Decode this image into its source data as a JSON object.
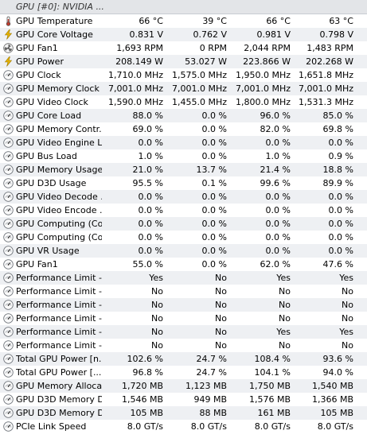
{
  "header": {
    "title": "GPU [#0]: NVIDIA ..."
  },
  "rows": [
    {
      "name": "GPU Temperature",
      "icon": "thermometer-icon",
      "values": [
        "66 °C",
        "39 °C",
        "66 °C",
        "63 °C"
      ]
    },
    {
      "name": "GPU Core Voltage",
      "icon": "lightning-icon",
      "values": [
        "0.831 V",
        "0.762 V",
        "0.981 V",
        "0.798 V"
      ]
    },
    {
      "name": "GPU Fan1",
      "icon": "fan-icon",
      "values": [
        "1,693 RPM",
        "0 RPM",
        "2,044 RPM",
        "1,483 RPM"
      ]
    },
    {
      "name": "GPU Power",
      "icon": "lightning-icon",
      "values": [
        "208.149 W",
        "53.027 W",
        "223.866 W",
        "202.268 W"
      ]
    },
    {
      "name": "GPU Clock",
      "icon": "gauge-icon",
      "values": [
        "1,710.0 MHz",
        "1,575.0 MHz",
        "1,950.0 MHz",
        "1,651.8 MHz"
      ]
    },
    {
      "name": "GPU Memory Clock",
      "icon": "gauge-icon",
      "values": [
        "7,001.0 MHz",
        "7,001.0 MHz",
        "7,001.0 MHz",
        "7,001.0 MHz"
      ]
    },
    {
      "name": "GPU Video Clock",
      "icon": "gauge-icon",
      "values": [
        "1,590.0 MHz",
        "1,455.0 MHz",
        "1,800.0 MHz",
        "1,531.3 MHz"
      ]
    },
    {
      "name": "GPU Core Load",
      "icon": "gauge-icon",
      "values": [
        "88.0 %",
        "0.0 %",
        "96.0 %",
        "85.0 %"
      ]
    },
    {
      "name": "GPU Memory Contr...",
      "icon": "gauge-icon",
      "values": [
        "69.0 %",
        "0.0 %",
        "82.0 %",
        "69.8 %"
      ]
    },
    {
      "name": "GPU Video Engine L...",
      "icon": "gauge-icon",
      "values": [
        "0.0 %",
        "0.0 %",
        "0.0 %",
        "0.0 %"
      ]
    },
    {
      "name": "GPU Bus Load",
      "icon": "gauge-icon",
      "values": [
        "1.0 %",
        "0.0 %",
        "1.0 %",
        "0.9 %"
      ]
    },
    {
      "name": "GPU Memory Usage",
      "icon": "gauge-icon",
      "values": [
        "21.0 %",
        "13.7 %",
        "21.4 %",
        "18.8 %"
      ]
    },
    {
      "name": "GPU D3D Usage",
      "icon": "gauge-icon",
      "values": [
        "95.5 %",
        "0.1 %",
        "99.6 %",
        "89.9 %"
      ]
    },
    {
      "name": "GPU Video Decode ...",
      "icon": "gauge-icon",
      "values": [
        "0.0 %",
        "0.0 %",
        "0.0 %",
        "0.0 %"
      ]
    },
    {
      "name": "GPU Video Encode ...",
      "icon": "gauge-icon",
      "values": [
        "0.0 %",
        "0.0 %",
        "0.0 %",
        "0.0 %"
      ]
    },
    {
      "name": "GPU Computing (Co...",
      "icon": "gauge-icon",
      "values": [
        "0.0 %",
        "0.0 %",
        "0.0 %",
        "0.0 %"
      ]
    },
    {
      "name": "GPU Computing (Co...",
      "icon": "gauge-icon",
      "values": [
        "0.0 %",
        "0.0 %",
        "0.0 %",
        "0.0 %"
      ]
    },
    {
      "name": "GPU VR Usage",
      "icon": "gauge-icon",
      "values": [
        "0.0 %",
        "0.0 %",
        "0.0 %",
        "0.0 %"
      ]
    },
    {
      "name": "GPU Fan1",
      "icon": "gauge-icon",
      "values": [
        "55.0 %",
        "0.0 %",
        "62.0 %",
        "47.6 %"
      ]
    },
    {
      "name": "Performance Limit - ...",
      "icon": "gauge-icon",
      "values": [
        "Yes",
        "No",
        "Yes",
        "Yes"
      ]
    },
    {
      "name": "Performance Limit - ...",
      "icon": "gauge-icon",
      "values": [
        "No",
        "No",
        "No",
        "No"
      ]
    },
    {
      "name": "Performance Limit - ...",
      "icon": "gauge-icon",
      "values": [
        "No",
        "No",
        "No",
        "No"
      ]
    },
    {
      "name": "Performance Limit - ...",
      "icon": "gauge-icon",
      "values": [
        "No",
        "No",
        "No",
        "No"
      ]
    },
    {
      "name": "Performance Limit - ...",
      "icon": "gauge-icon",
      "values": [
        "No",
        "No",
        "Yes",
        "Yes"
      ]
    },
    {
      "name": "Performance Limit - ...",
      "icon": "gauge-icon",
      "values": [
        "No",
        "No",
        "No",
        "No"
      ]
    },
    {
      "name": "Total GPU Power [n...",
      "icon": "gauge-icon",
      "values": [
        "102.6 %",
        "24.7 %",
        "108.4 %",
        "93.6 %"
      ]
    },
    {
      "name": "Total GPU Power [...",
      "icon": "gauge-icon",
      "values": [
        "96.8 %",
        "24.7 %",
        "104.1 %",
        "94.0 %"
      ]
    },
    {
      "name": "GPU Memory Alloca...",
      "icon": "gauge-icon",
      "values": [
        "1,720 MB",
        "1,123 MB",
        "1,750 MB",
        "1,540 MB"
      ]
    },
    {
      "name": "GPU D3D Memory D...",
      "icon": "gauge-icon",
      "values": [
        "1,546 MB",
        "949 MB",
        "1,576 MB",
        "1,366 MB"
      ]
    },
    {
      "name": "GPU D3D Memory D...",
      "icon": "gauge-icon",
      "values": [
        "105 MB",
        "88 MB",
        "161 MB",
        "105 MB"
      ]
    },
    {
      "name": "PCIe Link Speed",
      "icon": "gauge-icon",
      "values": [
        "8.0 GT/s",
        "8.0 GT/s",
        "8.0 GT/s",
        "8.0 GT/s"
      ]
    }
  ],
  "colors": {
    "accent_lightning": "#e6b400",
    "thermometer": "#c0392b",
    "row_alt": "#eef0f3"
  }
}
